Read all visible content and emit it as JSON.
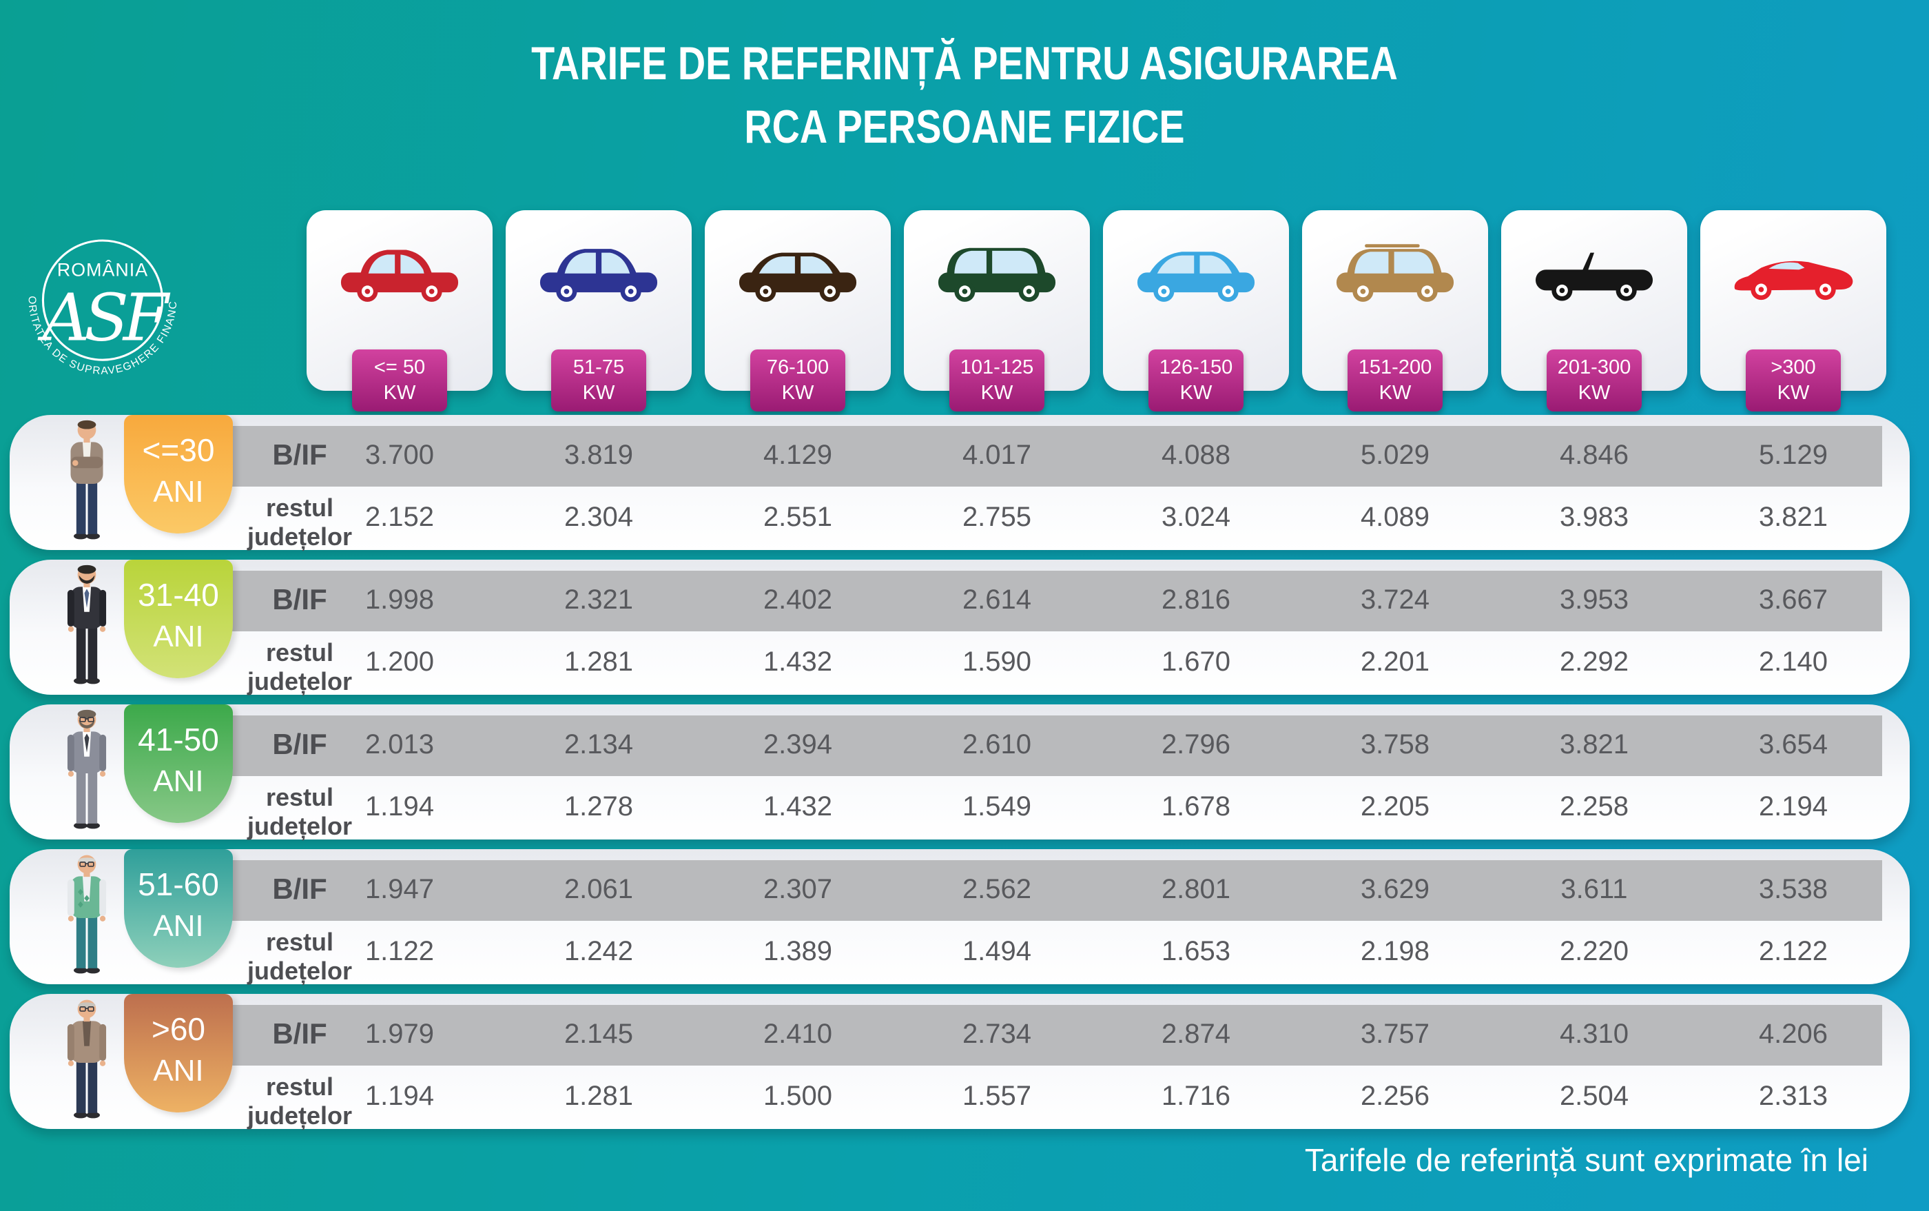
{
  "title": {
    "line1": "TARIFE DE REFERINȚĂ PENTRU ASIGURAREA",
    "line2": "RCA PERSOANE FIZICE"
  },
  "logo": {
    "country": "ROMÂNIA",
    "monogram": "ASF",
    "ring_text": "AUTORITATEA DE SUPRAVEGHERE FINANCIARĂ"
  },
  "row_labels": {
    "bif": "B/IF",
    "rest_line1": "restul",
    "rest_line2": "județelor"
  },
  "power_categories": [
    {
      "label_line1": "<= 50",
      "label_line2": "KW",
      "car_type": "city",
      "car_color": "#c9232e"
    },
    {
      "label_line1": "51-75",
      "label_line2": "KW",
      "car_type": "crossover",
      "car_color": "#2d3493"
    },
    {
      "label_line1": "76-100",
      "label_line2": "KW",
      "car_type": "sedan",
      "car_color": "#3a2412"
    },
    {
      "label_line1": "101-125",
      "label_line2": "KW",
      "car_type": "minivan",
      "car_color": "#1d492b"
    },
    {
      "label_line1": "126-150",
      "label_line2": "KW",
      "car_type": "sedan2",
      "car_color": "#3aa7e1"
    },
    {
      "label_line1": "151-200",
      "label_line2": "KW",
      "car_type": "suv",
      "car_color": "#b1884e"
    },
    {
      "label_line1": "201-300",
      "label_line2": "KW",
      "car_type": "convertible",
      "car_color": "#161616"
    },
    {
      "label_line1": ">300",
      "label_line2": "KW",
      "car_type": "sports",
      "car_color": "#e5202c"
    }
  ],
  "age_groups": [
    {
      "range": "<=30",
      "unit": "ANI",
      "badge_from": "#f8a93d",
      "badge_to": "#fbc966",
      "person": {
        "skin": "#e9b28c",
        "hair": "#53402f",
        "top": "#9d8a7b",
        "top_shade": "#8a7667",
        "inner": "#f2f0ea",
        "pants": "#2d3f61",
        "crossed_arms": true
      },
      "bif": [
        "3.700",
        "3.819",
        "4.129",
        "4.017",
        "4.088",
        "5.029",
        "4.846",
        "5.129"
      ],
      "rest": [
        "2.152",
        "2.304",
        "2.551",
        "2.755",
        "3.024",
        "4.089",
        "3.983",
        "3.821"
      ]
    },
    {
      "range": "31-40",
      "unit": "ANI",
      "badge_from": "#b9d43a",
      "badge_to": "#d2e277",
      "person": {
        "skin": "#e9b28c",
        "hair": "#2d2a26",
        "beard": true,
        "top": "#32333a",
        "top_shade": "#24252b",
        "inner": "#ffffff",
        "tie": "#51658a",
        "pants": "#2a2b32"
      },
      "bif": [
        "1.998",
        "2.321",
        "2.402",
        "2.614",
        "2.816",
        "3.724",
        "3.953",
        "3.667"
      ],
      "rest": [
        "1.200",
        "1.281",
        "1.432",
        "1.590",
        "1.670",
        "2.201",
        "2.292",
        "2.140"
      ]
    },
    {
      "range": "41-50",
      "unit": "ANI",
      "badge_from": "#3ca94a",
      "badge_to": "#87c887",
      "person": {
        "skin": "#e9b28c",
        "hair": "#6f6357",
        "beard": true,
        "glasses": true,
        "top": "#8b8e9a",
        "top_shade": "#797c88",
        "inner": "#ffffff",
        "tie": "#3c3f47",
        "pants": "#8b8e9a"
      },
      "bif": [
        "2.013",
        "2.134",
        "2.394",
        "2.610",
        "2.796",
        "3.758",
        "3.821",
        "3.654"
      ],
      "rest": [
        "1.194",
        "1.278",
        "1.432",
        "1.549",
        "1.678",
        "2.205",
        "2.258",
        "2.194"
      ]
    },
    {
      "range": "51-60",
      "unit": "ANI",
      "badge_from": "#2f9f9a",
      "badge_to": "#8ed0ba",
      "person": {
        "skin": "#e9b28c",
        "hair": "#d7d5cf",
        "bald": true,
        "glasses": true,
        "top": "#6ab795",
        "top_shade": "#e6e9ec",
        "inner": "#eef0f2",
        "pants": "#2f7e86",
        "diamonds": true,
        "diamond_color": "#4ea37f"
      },
      "bif": [
        "1.947",
        "2.061",
        "2.307",
        "2.562",
        "2.801",
        "3.629",
        "3.611",
        "3.538"
      ],
      "rest": [
        "1.122",
        "1.242",
        "1.389",
        "1.494",
        "1.653",
        "2.198",
        "2.220",
        "2.122"
      ]
    },
    {
      "range": ">60",
      "unit": "ANI",
      "badge_from": "#bd6f4e",
      "badge_to": "#eeb264",
      "person": {
        "skin": "#e9b28c",
        "hair": "#c9c4bc",
        "bald": true,
        "glasses": true,
        "top": "#a78f7c",
        "top_shade": "#97806e",
        "inner": "#6b5a4e",
        "pants": "#2c3a55"
      },
      "bif": [
        "1.979",
        "2.145",
        "2.410",
        "2.734",
        "2.874",
        "3.757",
        "4.310",
        "4.206"
      ],
      "rest": [
        "1.194",
        "1.281",
        "1.500",
        "1.557",
        "1.716",
        "2.256",
        "2.504",
        "2.313"
      ]
    }
  ],
  "footer": {
    "note": "Tarifele de referință sunt exprimate în lei"
  },
  "colors": {
    "background_left": "#0a9f93",
    "background_right": "#0f9cc4",
    "row_stripe": "#b9babc",
    "value_text": "#58595d",
    "kw_badge_top": "#d2429f",
    "kw_badge_bottom": "#9a1b73",
    "window_glass": "#cfe9f8"
  },
  "chart_data": {
    "type": "table",
    "title": "TARIFE DE REFERINȚĂ PENTRU ASIGURAREA RCA PERSOANE FIZICE",
    "unit_note": "Tarifele de referință sunt exprimate în lei",
    "columns_power_kw": [
      "<= 50",
      "51-75",
      "76-100",
      "101-125",
      "126-150",
      "151-200",
      "201-300",
      ">300"
    ],
    "rows_age": [
      "<=30 ANI",
      "31-40 ANI",
      "41-50 ANI",
      "51-60 ANI",
      ">60 ANI"
    ],
    "series": [
      {
        "age": "<=30",
        "region": "B/IF",
        "values": [
          3700,
          3819,
          4129,
          4017,
          4088,
          5029,
          4846,
          5129
        ]
      },
      {
        "age": "<=30",
        "region": "restul județelor",
        "values": [
          2152,
          2304,
          2551,
          2755,
          3024,
          4089,
          3983,
          3821
        ]
      },
      {
        "age": "31-40",
        "region": "B/IF",
        "values": [
          1998,
          2321,
          2402,
          2614,
          2816,
          3724,
          3953,
          3667
        ]
      },
      {
        "age": "31-40",
        "region": "restul județelor",
        "values": [
          1200,
          1281,
          1432,
          1590,
          1670,
          2201,
          2292,
          2140
        ]
      },
      {
        "age": "41-50",
        "region": "B/IF",
        "values": [
          2013,
          2134,
          2394,
          2610,
          2796,
          3758,
          3821,
          3654
        ]
      },
      {
        "age": "41-50",
        "region": "restul județelor",
        "values": [
          1194,
          1278,
          1432,
          1549,
          1678,
          2205,
          2258,
          2194
        ]
      },
      {
        "age": "51-60",
        "region": "B/IF",
        "values": [
          1947,
          2061,
          2307,
          2562,
          2801,
          3629,
          3611,
          3538
        ]
      },
      {
        "age": "51-60",
        "region": "restul județelor",
        "values": [
          1122,
          1242,
          1389,
          1494,
          1653,
          2198,
          2220,
          2122
        ]
      },
      {
        "age": ">60",
        "region": "B/IF",
        "values": [
          1979,
          2145,
          2410,
          2734,
          2874,
          3757,
          4310,
          4206
        ]
      },
      {
        "age": ">60",
        "region": "restul județelor",
        "values": [
          1194,
          1281,
          1500,
          1557,
          1716,
          2256,
          2504,
          2313
        ]
      }
    ]
  }
}
